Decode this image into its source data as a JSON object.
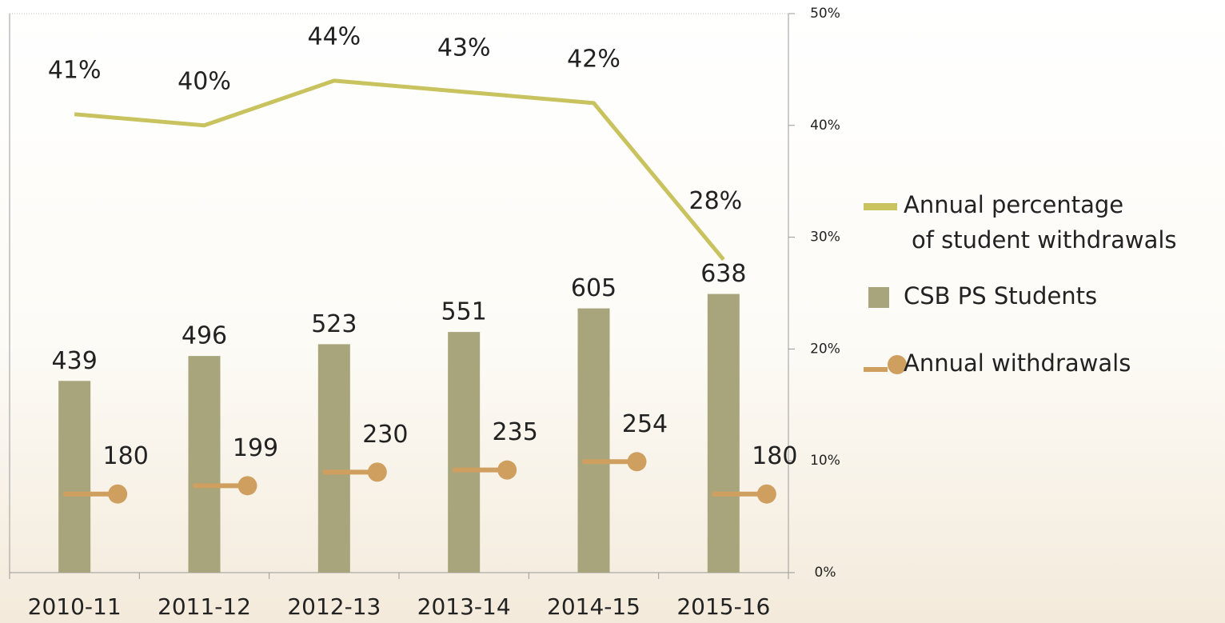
{
  "chart_data": {
    "type": "bar-line",
    "categories": [
      "2010-11",
      "2011-12",
      "2012-13",
      "2013-14",
      "2014-15",
      "2015-16"
    ],
    "ylim": [
      0,
      1280
    ],
    "y2lim": [
      0,
      50
    ],
    "y2ticks": [
      {
        "value": 0,
        "label": "0%"
      },
      {
        "value": 10,
        "label": "10%"
      },
      {
        "value": 20,
        "label": "20%"
      },
      {
        "value": 30,
        "label": "30%"
      },
      {
        "value": 40,
        "label": "40%"
      },
      {
        "value": 50,
        "label": "50%"
      }
    ],
    "series": [
      {
        "name": "Annual percentage\nof student withdrawals",
        "type": "line",
        "axis": "y2",
        "color": "#c8c35f",
        "values": [
          41,
          40,
          44,
          43,
          42,
          28
        ],
        "value_labels": [
          "41%",
          "40%",
          "44%",
          "43%",
          "42%",
          "28%"
        ]
      },
      {
        "name": "CSB PS Students",
        "type": "bar",
        "color": "#a8a57c",
        "values": [
          439,
          496,
          523,
          551,
          605,
          638
        ]
      },
      {
        "name": "Annual withdrawals",
        "type": "marker",
        "color": "#cf9f5f",
        "values": [
          180,
          199,
          230,
          235,
          254,
          180
        ]
      }
    ]
  }
}
